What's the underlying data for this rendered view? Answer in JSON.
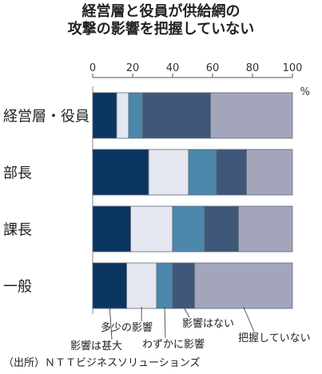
{
  "title_lines": [
    "経営層と役員が供給網の",
    "攻撃の影響を把握していない"
  ],
  "source": "（出所）ＮＴＴビジネスソリューションズ",
  "chart_data": {
    "type": "bar",
    "orientation": "horizontal",
    "stacked": true,
    "unit": "%",
    "xlim": [
      0,
      100
    ],
    "xticks": [
      0,
      20,
      40,
      60,
      80,
      100
    ],
    "categories": [
      "経営層・役員",
      "部長",
      "課長",
      "一般"
    ],
    "series": [
      {
        "name": "影響は甚大",
        "color": "#0b3561",
        "values": [
          12,
          28,
          19,
          17
        ]
      },
      {
        "name": "多少の影響",
        "color": "#e4e7ef",
        "values": [
          6,
          20,
          21,
          15
        ]
      },
      {
        "name": "わずかに影響",
        "color": "#4c87ac",
        "values": [
          7,
          14,
          16,
          8
        ]
      },
      {
        "name": "影響はない",
        "color": "#3f5778",
        "values": [
          34,
          15,
          17,
          11
        ]
      },
      {
        "name": "把握していない",
        "color": "#a3a6ba",
        "values": [
          41,
          23,
          27,
          49
        ]
      }
    ],
    "legend_placement": "callouts-below-last-bar",
    "grid": false
  }
}
